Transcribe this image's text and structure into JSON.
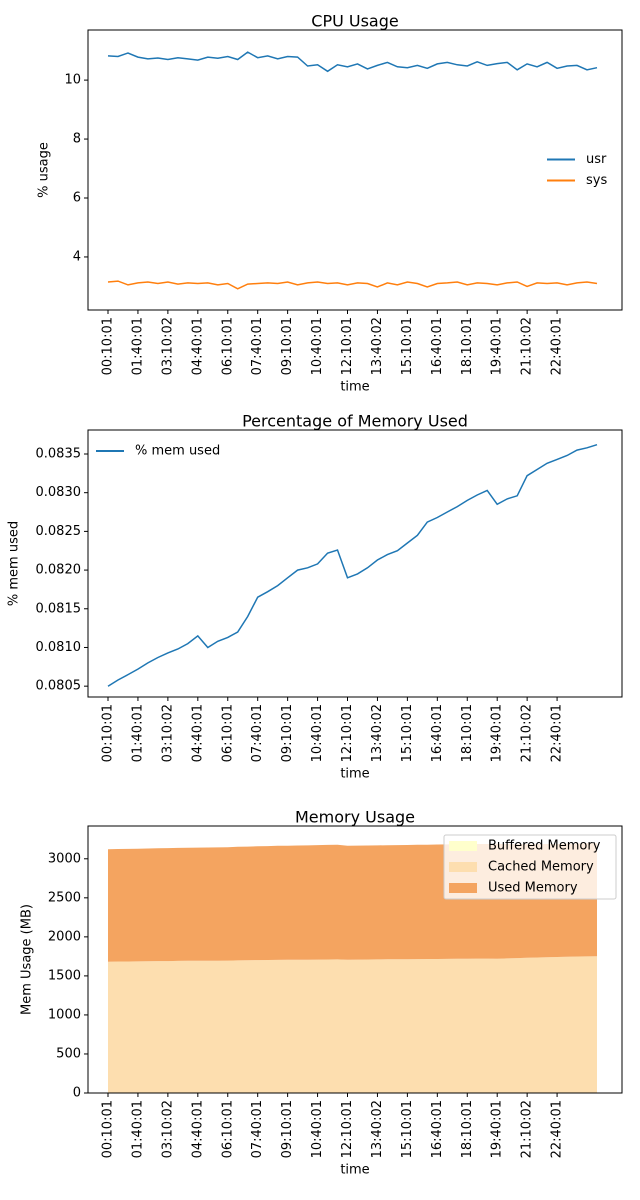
{
  "chart_data": [
    {
      "type": "line",
      "title": "CPU Usage",
      "xlabel": "time",
      "ylabel": "% usage",
      "categories": [
        "00:10:01",
        null,
        null,
        "01:40:01",
        null,
        null,
        "03:10:02",
        null,
        null,
        "04:40:01",
        null,
        null,
        "06:10:01",
        null,
        null,
        "07:40:01",
        null,
        null,
        "09:10:01",
        null,
        null,
        "10:40:01",
        null,
        null,
        "12:10:01",
        null,
        null,
        "13:40:02",
        null,
        null,
        "15:10:01",
        null,
        null,
        "16:40:01",
        null,
        null,
        "18:10:01",
        null,
        null,
        "19:40:01",
        null,
        null,
        "21:10:02",
        null,
        null,
        "22:40:01",
        null,
        null,
        null,
        null
      ],
      "series": [
        {
          "name": "usr",
          "color": "#1f77b4",
          "values": [
            10.82,
            10.8,
            10.92,
            10.78,
            10.72,
            10.75,
            10.7,
            10.76,
            10.72,
            10.68,
            10.78,
            10.74,
            10.8,
            10.7,
            10.95,
            10.76,
            10.82,
            10.72,
            10.8,
            10.78,
            10.48,
            10.52,
            10.3,
            10.52,
            10.45,
            10.55,
            10.38,
            10.5,
            10.6,
            10.45,
            10.42,
            10.5,
            10.4,
            10.55,
            10.6,
            10.52,
            10.48,
            10.62,
            10.5,
            10.56,
            10.6,
            10.35,
            10.55,
            10.45,
            10.6,
            10.4,
            10.48,
            10.5,
            10.35,
            10.42
          ]
        },
        {
          "name": "sys",
          "color": "#ff7f0e",
          "values": [
            3.15,
            3.18,
            3.05,
            3.12,
            3.15,
            3.1,
            3.15,
            3.08,
            3.12,
            3.1,
            3.12,
            3.05,
            3.1,
            2.92,
            3.08,
            3.1,
            3.12,
            3.1,
            3.15,
            3.05,
            3.12,
            3.15,
            3.1,
            3.12,
            3.05,
            3.12,
            3.1,
            2.98,
            3.12,
            3.05,
            3.15,
            3.1,
            2.98,
            3.1,
            3.12,
            3.15,
            3.05,
            3.12,
            3.1,
            3.05,
            3.12,
            3.15,
            3.0,
            3.12,
            3.1,
            3.12,
            3.05,
            3.12,
            3.15,
            3.1
          ]
        }
      ],
      "ylim": [
        2.2,
        11.7
      ],
      "yticks": [
        4,
        6,
        8,
        10
      ],
      "legend": "center right"
    },
    {
      "type": "line",
      "title": "Percentage of Memory Used",
      "xlabel": "time",
      "ylabel": "% mem used",
      "categories": [
        "00:10:01",
        null,
        null,
        "01:40:01",
        null,
        null,
        "03:10:02",
        null,
        null,
        "04:40:01",
        null,
        null,
        "06:10:01",
        null,
        null,
        "07:40:01",
        null,
        null,
        "09:10:01",
        null,
        null,
        "10:40:01",
        null,
        null,
        "12:10:01",
        null,
        null,
        "13:40:02",
        null,
        null,
        "15:10:01",
        null,
        null,
        "16:40:01",
        null,
        null,
        "18:10:01",
        null,
        null,
        "19:40:01",
        null,
        null,
        "21:10:02",
        null,
        null,
        "22:40:01",
        null,
        null,
        null,
        null
      ],
      "series": [
        {
          "name": "% mem used",
          "color": "#1f77b4",
          "values": [
            0.0805,
            0.08058,
            0.08065,
            0.08072,
            0.0808,
            0.08087,
            0.08093,
            0.08098,
            0.08105,
            0.08115,
            0.081,
            0.08108,
            0.08113,
            0.0812,
            0.0814,
            0.08165,
            0.08172,
            0.0818,
            0.0819,
            0.082,
            0.08203,
            0.08208,
            0.08222,
            0.08226,
            0.0819,
            0.08195,
            0.08203,
            0.08213,
            0.0822,
            0.08225,
            0.08235,
            0.08245,
            0.08262,
            0.08268,
            0.08275,
            0.08282,
            0.0829,
            0.08297,
            0.08303,
            0.08285,
            0.08292,
            0.08296,
            0.08322,
            0.0833,
            0.08338,
            0.08343,
            0.08348,
            0.08355,
            0.08358,
            0.08362
          ]
        }
      ],
      "ylim": [
        0.08036,
        0.08381
      ],
      "yticks": [
        0.0805,
        {
          "value": 0.081,
          "label": "0.0810"
        },
        0.0815,
        {
          "value": 0.082,
          "label": "0.0820"
        },
        0.0825,
        {
          "value": 0.083,
          "label": "0.0830"
        },
        0.0835
      ],
      "legend": "upper left"
    },
    {
      "type": "area",
      "stacked": true,
      "title": "Memory Usage",
      "xlabel": "time",
      "ylabel": "Mem Usage (MB)",
      "categories": [
        "00:10:01",
        null,
        null,
        "01:40:01",
        null,
        null,
        "03:10:02",
        null,
        null,
        "04:40:01",
        null,
        null,
        "06:10:01",
        null,
        null,
        "07:40:01",
        null,
        null,
        "09:10:01",
        null,
        null,
        "10:40:01",
        null,
        null,
        "12:10:01",
        null,
        null,
        "13:40:02",
        null,
        null,
        "15:10:01",
        null,
        null,
        "16:40:01",
        null,
        null,
        "18:10:01",
        null,
        null,
        "19:40:01",
        null,
        null,
        "21:10:02",
        null,
        null,
        "22:40:01",
        null,
        null,
        null,
        null
      ],
      "series": [
        {
          "name": "Buffered Memory",
          "color": "#ffffcc",
          "values": [
            2,
            2,
            2,
            2,
            2,
            2,
            2,
            2,
            2,
            2,
            2,
            2,
            2,
            2,
            2,
            2,
            2,
            2,
            2,
            2,
            2,
            2,
            2,
            2,
            2,
            2,
            2,
            2,
            2,
            2,
            2,
            2,
            2,
            2,
            2,
            2,
            2,
            2,
            2,
            2,
            2,
            2,
            2,
            2,
            2,
            2,
            2,
            2,
            2,
            2
          ]
        },
        {
          "name": "Cached Memory",
          "color": "#fddeaf",
          "values": [
            1680,
            1682,
            1683,
            1684,
            1686,
            1687,
            1688,
            1690,
            1691,
            1692,
            1692,
            1693,
            1694,
            1696,
            1698,
            1700,
            1702,
            1703,
            1704,
            1705,
            1706,
            1707,
            1708,
            1709,
            1706,
            1707,
            1708,
            1709,
            1710,
            1711,
            1712,
            1713,
            1714,
            1715,
            1716,
            1717,
            1718,
            1719,
            1720,
            1718,
            1722,
            1726,
            1730,
            1734,
            1737,
            1740,
            1743,
            1746,
            1748,
            1750
          ]
        },
        {
          "name": "Used Memory",
          "color": "#f4a460",
          "values": [
            1440,
            1441,
            1442,
            1443,
            1444,
            1446,
            1447,
            1448,
            1448,
            1449,
            1450,
            1451,
            1453,
            1455,
            1456,
            1458,
            1459,
            1461,
            1462,
            1463,
            1464,
            1466,
            1468,
            1470,
            1460,
            1460,
            1460,
            1461,
            1462,
            1462,
            1463,
            1464,
            1465,
            1466,
            1466,
            1467,
            1467,
            1468,
            1468,
            1470,
            1465,
            1460,
            1456,
            1452,
            1450,
            1448,
            1447,
            1446,
            1448,
            1450
          ]
        }
      ],
      "ylim": [
        0,
        3420
      ],
      "yticks": [
        0,
        500,
        1000,
        1500,
        2000,
        2500,
        3000
      ],
      "legend": "upper right"
    }
  ]
}
